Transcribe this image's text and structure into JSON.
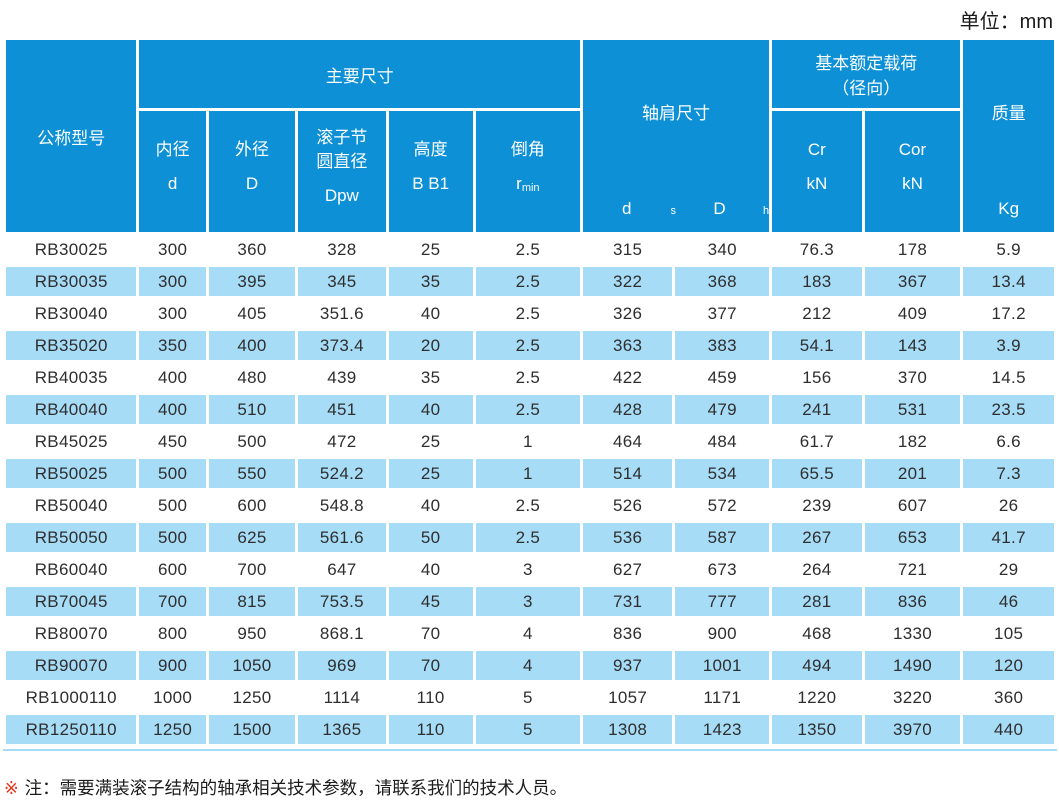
{
  "unit_label": "单位：mm",
  "colors": {
    "header_blue": "#0d90d6",
    "row_light_blue": "#a7dcf7",
    "note_marker_red": "#e8381d",
    "body_text": "#2e2e2e"
  },
  "header": {
    "model": "公称型号",
    "main_dims_group": "主要尺寸",
    "inner_dia": {
      "name": "内径",
      "sym": "d"
    },
    "outer_dia": {
      "name": "外径",
      "sym": "D"
    },
    "roller_pitch": {
      "name_line1": "滚子节",
      "name_line2": "圆直径",
      "sym": "Dpw"
    },
    "height": {
      "name": "高度",
      "sym": "B B1"
    },
    "chamfer": {
      "name": "倒角",
      "sym_base": "r",
      "sym_sub": "min"
    },
    "shoulder": {
      "label": "轴肩尺寸",
      "sym1_base": "d",
      "sym1_sub": "s",
      "sym2_base": "D",
      "sym2_sub": "h"
    },
    "load": {
      "line1": "基本额定载荷",
      "line2": "（径向）",
      "cr": "Cr",
      "cor": "Cor",
      "cr_unit": "kN",
      "cor_unit": "kN"
    },
    "mass": {
      "label": "质量",
      "unit": "Kg"
    }
  },
  "table": {
    "col_keys": [
      "model",
      "d",
      "D",
      "Dpw",
      "B-B1",
      "r-min",
      "ds",
      "Dh",
      "Cr",
      "Cor",
      "Kg"
    ],
    "rows": [
      [
        "RB30025",
        "300",
        "360",
        "328",
        "25",
        "2.5",
        "315",
        "340",
        "76.3",
        "178",
        "5.9"
      ],
      [
        "RB30035",
        "300",
        "395",
        "345",
        "35",
        "2.5",
        "322",
        "368",
        "183",
        "367",
        "13.4"
      ],
      [
        "RB30040",
        "300",
        "405",
        "351.6",
        "40",
        "2.5",
        "326",
        "377",
        "212",
        "409",
        "17.2"
      ],
      [
        "RB35020",
        "350",
        "400",
        "373.4",
        "20",
        "2.5",
        "363",
        "383",
        "54.1",
        "143",
        "3.9"
      ],
      [
        "RB40035",
        "400",
        "480",
        "439",
        "35",
        "2.5",
        "422",
        "459",
        "156",
        "370",
        "14.5"
      ],
      [
        "RB40040",
        "400",
        "510",
        "451",
        "40",
        "2.5",
        "428",
        "479",
        "241",
        "531",
        "23.5"
      ],
      [
        "RB45025",
        "450",
        "500",
        "472",
        "25",
        "1",
        "464",
        "484",
        "61.7",
        "182",
        "6.6"
      ],
      [
        "RB50025",
        "500",
        "550",
        "524.2",
        "25",
        "1",
        "514",
        "534",
        "65.5",
        "201",
        "7.3"
      ],
      [
        "RB50040",
        "500",
        "600",
        "548.8",
        "40",
        "2.5",
        "526",
        "572",
        "239",
        "607",
        "26"
      ],
      [
        "RB50050",
        "500",
        "625",
        "561.6",
        "50",
        "2.5",
        "536",
        "587",
        "267",
        "653",
        "41.7"
      ],
      [
        "RB60040",
        "600",
        "700",
        "647",
        "40",
        "3",
        "627",
        "673",
        "264",
        "721",
        "29"
      ],
      [
        "RB70045",
        "700",
        "815",
        "753.5",
        "45",
        "3",
        "731",
        "777",
        "281",
        "836",
        "46"
      ],
      [
        "RB80070",
        "800",
        "950",
        "868.1",
        "70",
        "4",
        "836",
        "900",
        "468",
        "1330",
        "105"
      ],
      [
        "RB90070",
        "900",
        "1050",
        "969",
        "70",
        "4",
        "937",
        "1001",
        "494",
        "1490",
        "120"
      ],
      [
        "RB1000110",
        "1000",
        "1250",
        "1114",
        "110",
        "5",
        "1057",
        "1171",
        "1220",
        "3220",
        "360"
      ],
      [
        "RB1250110",
        "1250",
        "1500",
        "1365",
        "110",
        "5",
        "1308",
        "1423",
        "1350",
        "3970",
        "440"
      ]
    ]
  },
  "note": {
    "marker": "※",
    "text": "注：需要满装滚子结构的轴承相关技术参数，请联系我们的技术人员。"
  }
}
